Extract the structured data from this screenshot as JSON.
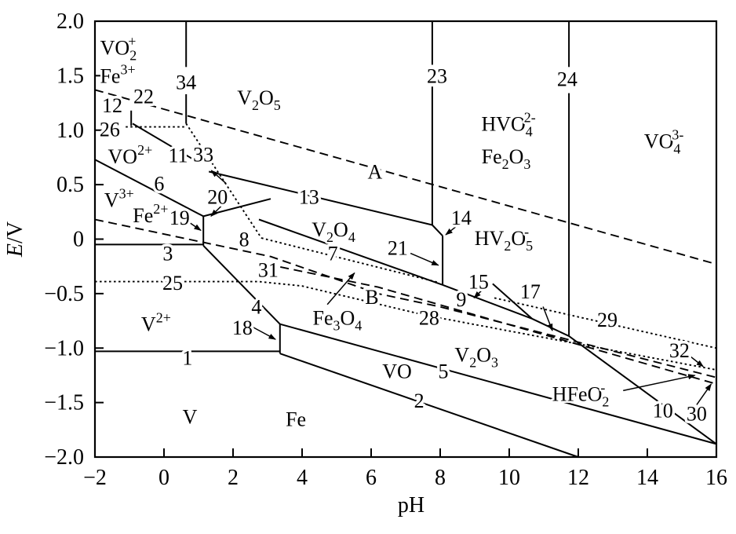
{
  "colors": {
    "ink": "#000000",
    "background": "#ffffff"
  },
  "chart_data": {
    "type": "line",
    "subtype": "pourbaix-diagram",
    "title": "",
    "xlabel": "pH",
    "ylabel_segments": [
      {
        "t": "E",
        "italic": true
      },
      {
        "t": "/V"
      }
    ],
    "xlim": [
      -2,
      16
    ],
    "ylim": [
      -2,
      2
    ],
    "xticks": [
      {
        "v": -2,
        "t": "−2"
      },
      {
        "v": 0,
        "t": "0"
      },
      {
        "v": 2,
        "t": "2"
      },
      {
        "v": 4,
        "t": "4"
      },
      {
        "v": 6,
        "t": "6"
      },
      {
        "v": 8,
        "t": "8"
      },
      {
        "v": 10,
        "t": "10"
      },
      {
        "v": 12,
        "t": "12"
      },
      {
        "v": 14,
        "t": "14"
      },
      {
        "v": 16,
        "t": "16"
      }
    ],
    "yticks": [
      {
        "v": 2,
        "t": "2.0"
      },
      {
        "v": 1.5,
        "t": "1.5"
      },
      {
        "v": 1,
        "t": "1.0"
      },
      {
        "v": 0.5,
        "t": "0.5"
      },
      {
        "v": 0,
        "t": "0"
      },
      {
        "v": -0.5,
        "t": "−0.5"
      },
      {
        "v": -1,
        "t": "−1.0"
      },
      {
        "v": -1.5,
        "t": "−1.5"
      },
      {
        "v": -2,
        "t": "−2.0"
      }
    ],
    "grid": false,
    "lines": [
      {
        "id": "1",
        "style": "solid",
        "pts": [
          [
            -2,
            -1.03
          ],
          [
            3.36,
            -1.03
          ]
        ]
      },
      {
        "id": "2",
        "style": "solid",
        "pts": [
          [
            3.36,
            -1.05
          ],
          [
            12.0,
            -2.0
          ]
        ]
      },
      {
        "id": "3",
        "style": "solid",
        "pts": [
          [
            -2,
            -0.05
          ],
          [
            1.14,
            -0.05
          ]
        ]
      },
      {
        "id": "4",
        "style": "solid",
        "pts": [
          [
            1.14,
            -0.06
          ],
          [
            3.36,
            -0.78
          ]
        ]
      },
      {
        "id": "5",
        "style": "solid",
        "pts": [
          [
            3.36,
            -0.78
          ],
          [
            16,
            -1.88
          ]
        ]
      },
      {
        "id": "6",
        "style": "solid",
        "pts": [
          [
            -2,
            0.73
          ],
          [
            1.14,
            0.21
          ]
        ]
      },
      {
        "id": "7",
        "style": "solid",
        "pts": [
          [
            2.75,
            0.18
          ],
          [
            8.07,
            -0.42
          ]
        ]
      },
      {
        "id": "8",
        "style": "dotted",
        "pts": [
          [
            2.82,
            0.01
          ],
          [
            7.98,
            -0.4
          ]
        ]
      },
      {
        "id": "9",
        "style": "solid",
        "pts": [
          [
            8.07,
            -0.42
          ],
          [
            10.66,
            -0.73
          ]
        ]
      },
      {
        "id": "11",
        "style": "solid",
        "pts": [
          [
            -0.91,
            1.06
          ],
          [
            0.86,
            0.73
          ]
        ]
      },
      {
        "id": "12",
        "style": "solid",
        "pts": [
          [
            -0.95,
            1.18
          ],
          [
            -0.95,
            1.04
          ]
        ]
      },
      {
        "id": "13",
        "style": "solid",
        "pts": [
          [
            1.3,
            0.62
          ],
          [
            7.77,
            0.13
          ]
        ]
      },
      {
        "id": "14",
        "style": "solid",
        "pts": [
          [
            7.77,
            0.13
          ],
          [
            8.07,
            0.03
          ]
        ]
      },
      {
        "id": "15",
        "style": "solid",
        "pts": [
          [
            9.52,
            -0.41
          ],
          [
            10.66,
            -0.73
          ]
        ]
      },
      {
        "id": "17",
        "style": "solid",
        "pts": [
          [
            10.66,
            -0.73
          ],
          [
            11.73,
            -0.89
          ],
          [
            16,
            -1.88
          ]
        ]
      },
      {
        "id": "18",
        "style": "solid",
        "pts": [
          [
            3.36,
            -0.78
          ],
          [
            3.36,
            -1.05
          ]
        ]
      },
      {
        "id": "19",
        "style": "solid",
        "pts": [
          [
            1.14,
            0.21
          ],
          [
            1.14,
            -0.06
          ]
        ]
      },
      {
        "id": "20",
        "style": "solid",
        "pts": [
          [
            1.14,
            0.21
          ],
          [
            3.09,
            0.37
          ]
        ]
      },
      {
        "id": "21",
        "style": "solid",
        "pts": [
          [
            8.07,
            0.03
          ],
          [
            8.07,
            -0.42
          ]
        ]
      },
      {
        "id": "23-upper",
        "style": "solid",
        "pts": [
          [
            7.77,
            2.0
          ],
          [
            7.77,
            1.6
          ]
        ]
      },
      {
        "id": "23-lower",
        "style": "solid",
        "pts": [
          [
            7.77,
            1.4
          ],
          [
            7.77,
            0.13
          ]
        ]
      },
      {
        "id": "24-upper",
        "style": "solid",
        "pts": [
          [
            11.73,
            2.0
          ],
          [
            11.73,
            1.58
          ]
        ]
      },
      {
        "id": "24-lower",
        "style": "solid",
        "pts": [
          [
            11.73,
            1.34
          ],
          [
            11.73,
            -0.89
          ]
        ]
      },
      {
        "id": "34-upper",
        "style": "solid",
        "pts": [
          [
            0.64,
            2.0
          ],
          [
            0.64,
            1.58
          ]
        ]
      },
      {
        "id": "34-lower",
        "style": "solid",
        "pts": [
          [
            0.64,
            1.33
          ],
          [
            0.64,
            1.06
          ]
        ]
      },
      {
        "id": "A-22",
        "style": "dashed",
        "pts": [
          [
            -2,
            1.37
          ],
          [
            16,
            -0.23
          ]
        ]
      },
      {
        "id": "B-10",
        "style": "dashed",
        "pts": [
          [
            -2,
            0.18
          ],
          [
            3.09,
            -0.16
          ],
          [
            6.2,
            -0.5
          ],
          [
            7.98,
            -0.62
          ],
          [
            16,
            -1.27
          ]
        ]
      },
      {
        "id": "31-30",
        "style": "dashed",
        "pts": [
          [
            2.98,
            -0.23
          ],
          [
            6.2,
            -0.44
          ],
          [
            16,
            -1.33
          ]
        ]
      },
      {
        "id": "25-28-32",
        "style": "dotted",
        "pts": [
          [
            -2,
            -0.39
          ],
          [
            2.75,
            -0.39
          ],
          [
            4.0,
            -0.43
          ],
          [
            7.59,
            -0.7
          ],
          [
            16,
            -1.2
          ]
        ]
      },
      {
        "id": "26",
        "style": "dotted",
        "pts": [
          [
            -1.11,
            1.03
          ],
          [
            0.64,
            1.03
          ]
        ]
      },
      {
        "id": "29",
        "style": "dotted",
        "pts": [
          [
            9.57,
            -0.54
          ],
          [
            16,
            -1.0
          ]
        ]
      },
      {
        "id": "33",
        "style": "dotted",
        "pts": [
          [
            0.64,
            1.06
          ],
          [
            2.82,
            0.01
          ]
        ]
      }
    ],
    "line_number_labels": [
      {
        "t": "1",
        "x": 0.68,
        "y": -1.09
      },
      {
        "t": "2",
        "x": 7.39,
        "y": -1.48
      },
      {
        "t": "3",
        "x": 0.11,
        "y": -0.13
      },
      {
        "t": "4",
        "x": 2.68,
        "y": -0.62
      },
      {
        "t": "5",
        "x": 8.09,
        "y": -1.21
      },
      {
        "t": "6",
        "x": -0.14,
        "y": 0.51
      },
      {
        "t": "7",
        "x": 4.89,
        "y": -0.13
      },
      {
        "t": "8",
        "x": 2.32,
        "y": 0.0
      },
      {
        "t": "9",
        "x": 8.61,
        "y": -0.55
      },
      {
        "t": "10",
        "x": 14.45,
        "y": -1.57
      },
      {
        "t": "11",
        "x": 0.41,
        "y": 0.77
      },
      {
        "t": "12",
        "x": -1.5,
        "y": 1.23
      },
      {
        "t": "13",
        "x": 4.2,
        "y": 0.39
      },
      {
        "t": "14",
        "x": 8.61,
        "y": 0.2
      },
      {
        "t": "15",
        "x": 9.11,
        "y": -0.39
      },
      {
        "t": "17",
        "x": 10.61,
        "y": -0.48
      },
      {
        "t": "18",
        "x": 2.27,
        "y": -0.81
      },
      {
        "t": "19",
        "x": 0.45,
        "y": 0.2
      },
      {
        "t": "20",
        "x": 1.55,
        "y": 0.39
      },
      {
        "t": "21",
        "x": 6.77,
        "y": -0.08
      },
      {
        "t": "22",
        "x": -0.59,
        "y": 1.31
      },
      {
        "t": "23",
        "x": 7.91,
        "y": 1.5
      },
      {
        "t": "24",
        "x": 11.68,
        "y": 1.47
      },
      {
        "t": "25",
        "x": 0.25,
        "y": -0.4
      },
      {
        "t": "26",
        "x": -1.57,
        "y": 1.01
      },
      {
        "t": "28",
        "x": 7.68,
        "y": -0.72
      },
      {
        "t": "29",
        "x": 12.84,
        "y": -0.74
      },
      {
        "t": "30",
        "x": 15.43,
        "y": -1.6
      },
      {
        "t": "31",
        "x": 3.02,
        "y": -0.28
      },
      {
        "t": "32",
        "x": 14.93,
        "y": -1.02
      },
      {
        "t": "33",
        "x": 1.14,
        "y": 0.78
      },
      {
        "t": "34",
        "x": 0.64,
        "y": 1.44
      },
      {
        "t": "A",
        "x": 6.11,
        "y": 0.62
      },
      {
        "t": "B",
        "x": 6.02,
        "y": -0.53
      }
    ],
    "species_labels": [
      {
        "name": "VO2-plus",
        "x": -1.32,
        "y": 1.76,
        "segs": [
          {
            "t": "VO"
          },
          {
            "t": "2",
            "s": "sub"
          },
          {
            "t": "+",
            "s": "sups"
          }
        ]
      },
      {
        "name": "Fe3-plus",
        "x": -1.34,
        "y": 1.5,
        "segs": [
          {
            "t": "Fe"
          },
          {
            "t": "3+",
            "s": "sup"
          }
        ]
      },
      {
        "name": "V2O5",
        "x": 2.75,
        "y": 1.3,
        "segs": [
          {
            "t": "V"
          },
          {
            "t": "2",
            "s": "sub"
          },
          {
            "t": "O"
          },
          {
            "t": "5",
            "s": "sub"
          }
        ]
      },
      {
        "name": "HVO4-2minus",
        "x": 9.98,
        "y": 1.06,
        "segs": [
          {
            "t": "HVO"
          },
          {
            "t": "4",
            "s": "sub"
          },
          {
            "t": "2-",
            "s": "sups"
          }
        ]
      },
      {
        "name": "Fe2O3",
        "x": 9.91,
        "y": 0.76,
        "segs": [
          {
            "t": "Fe"
          },
          {
            "t": "2",
            "s": "sub"
          },
          {
            "t": "O"
          },
          {
            "t": "3",
            "s": "sub"
          }
        ]
      },
      {
        "name": "VO4-3minus",
        "x": 14.48,
        "y": 0.9,
        "segs": [
          {
            "t": "VO"
          },
          {
            "t": "4",
            "s": "sub"
          },
          {
            "t": "3-",
            "s": "sups"
          }
        ]
      },
      {
        "name": "VO-2plus",
        "x": -0.98,
        "y": 0.76,
        "segs": [
          {
            "t": "VO"
          },
          {
            "t": "2+",
            "s": "sup"
          }
        ]
      },
      {
        "name": "V-3plus",
        "x": -1.3,
        "y": 0.36,
        "segs": [
          {
            "t": "V"
          },
          {
            "t": "3+",
            "s": "sup"
          }
        ]
      },
      {
        "name": "Fe-2plus",
        "x": -0.39,
        "y": 0.22,
        "segs": [
          {
            "t": "Fe"
          },
          {
            "t": "2+",
            "s": "sup"
          }
        ]
      },
      {
        "name": "V2O4",
        "x": 4.91,
        "y": 0.09,
        "segs": [
          {
            "t": "V"
          },
          {
            "t": "2",
            "s": "sub"
          },
          {
            "t": "O"
          },
          {
            "t": "4",
            "s": "sub"
          }
        ]
      },
      {
        "name": "HV2O5-minus",
        "x": 9.84,
        "y": 0.01,
        "segs": [
          {
            "t": "HV"
          },
          {
            "t": "2",
            "s": "sub"
          },
          {
            "t": "O"
          },
          {
            "t": "5",
            "s": "sub"
          },
          {
            "t": "-",
            "s": "sups"
          }
        ]
      },
      {
        "name": "V-2plus",
        "x": -0.23,
        "y": -0.78,
        "segs": [
          {
            "t": "V"
          },
          {
            "t": "2+",
            "s": "sup"
          }
        ]
      },
      {
        "name": "Fe3O4",
        "x": 5.02,
        "y": -0.72,
        "segs": [
          {
            "t": "Fe"
          },
          {
            "t": "3",
            "s": "sub"
          },
          {
            "t": "O"
          },
          {
            "t": "4",
            "s": "sub"
          }
        ]
      },
      {
        "name": "V2O3",
        "x": 9.05,
        "y": -1.06,
        "segs": [
          {
            "t": "V"
          },
          {
            "t": "2",
            "s": "sub"
          },
          {
            "t": "O"
          },
          {
            "t": "3",
            "s": "sub"
          }
        ]
      },
      {
        "name": "VO",
        "x": 6.75,
        "y": -1.21,
        "segs": [
          {
            "t": "VO"
          }
        ]
      },
      {
        "name": "HFeO2-minus",
        "x": 12.07,
        "y": -1.42,
        "segs": [
          {
            "t": "HFeO"
          },
          {
            "t": "2",
            "s": "sub"
          },
          {
            "t": "-",
            "s": "sups"
          }
        ]
      },
      {
        "name": "V",
        "x": 0.75,
        "y": -1.63,
        "segs": [
          {
            "t": "V"
          }
        ]
      },
      {
        "name": "Fe",
        "x": 3.82,
        "y": -1.65,
        "segs": [
          {
            "t": "Fe"
          }
        ]
      }
    ],
    "arrows": [
      {
        "label": "18",
        "from": [
          2.47,
          -0.79
        ],
        "to": [
          3.23,
          -0.92
        ]
      },
      {
        "label": "19",
        "from": [
          0.7,
          0.16
        ],
        "to": [
          1.07,
          0.08
        ]
      },
      {
        "label": "20",
        "from": [
          1.68,
          0.31
        ],
        "to": [
          1.36,
          0.21
        ]
      },
      {
        "label": "21",
        "from": [
          7.14,
          -0.13
        ],
        "to": [
          7.95,
          -0.24
        ]
      },
      {
        "label": "14",
        "from": [
          8.52,
          0.13
        ],
        "to": [
          8.16,
          0.04
        ]
      },
      {
        "label": "15",
        "from": [
          9.27,
          -0.45
        ],
        "to": [
          8.98,
          -0.54
        ]
      },
      {
        "label": "17",
        "from": [
          10.98,
          -0.62
        ],
        "to": [
          11.25,
          -0.84
        ]
      },
      {
        "label": "33",
        "from": [
          1.8,
          0.51
        ],
        "to": [
          1.37,
          0.63
        ]
      },
      {
        "label": "Fe3O4",
        "from": [
          4.73,
          -0.6
        ],
        "to": [
          5.52,
          -0.31
        ]
      },
      {
        "label": "32",
        "from": [
          15.18,
          -1.06
        ],
        "to": [
          15.62,
          -1.17
        ]
      },
      {
        "label": "10-HFeO2",
        "from": [
          13.3,
          -1.39
        ],
        "to": [
          15.38,
          -1.25
        ]
      },
      {
        "label": "30",
        "from": [
          15.43,
          -1.52
        ],
        "to": [
          15.85,
          -1.33
        ]
      }
    ],
    "legend": null
  }
}
